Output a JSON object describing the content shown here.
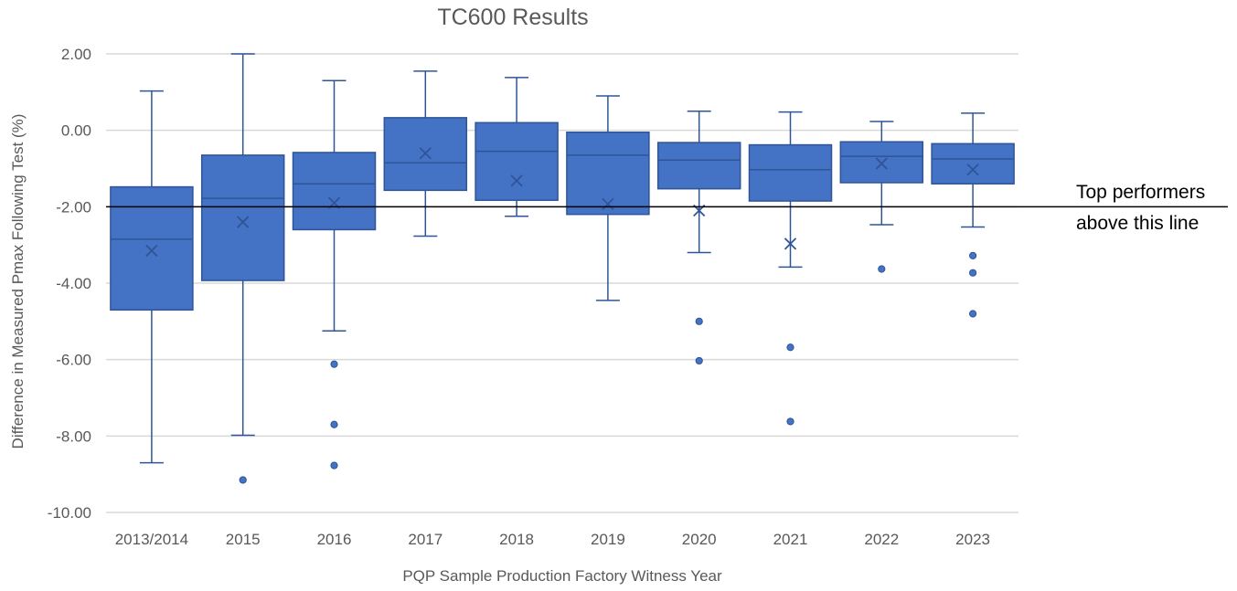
{
  "chart_data": {
    "type": "boxplot",
    "title": "TC600 Results",
    "xlabel": "PQP Sample Production Factory Witness Year",
    "ylabel": "Difference in Measured Pmax Following Test (%)",
    "ylim": [
      -10,
      2
    ],
    "yticks": [
      2,
      0,
      -2,
      -4,
      -6,
      -8,
      -10
    ],
    "ytick_labels": [
      "2.00",
      "0.00",
      "-2.00",
      "-4.00",
      "-6.00",
      "-8.00",
      "-10.00"
    ],
    "grid": true,
    "legend": "none",
    "colors": {
      "box_fill": "#4472C4",
      "box_stroke": "#2F5597",
      "grid": "#D9D9D9",
      "reference_line": "#000000"
    },
    "categories": [
      "2013/2014",
      "2015",
      "2016",
      "2017",
      "2018",
      "2019",
      "2020",
      "2021",
      "2022",
      "2023"
    ],
    "boxes": [
      {
        "whisker_low": -8.7,
        "q1": -4.7,
        "median": -2.85,
        "q3": -1.48,
        "whisker_high": 1.03,
        "mean": -3.15,
        "outliers": []
      },
      {
        "whisker_low": -7.98,
        "q1": -3.93,
        "median": -1.78,
        "q3": -0.65,
        "whisker_high": 2.0,
        "mean": -2.4,
        "outliers": [
          -9.15
        ]
      },
      {
        "whisker_low": -5.25,
        "q1": -2.6,
        "median": -1.4,
        "q3": -0.58,
        "whisker_high": 1.3,
        "mean": -1.9,
        "outliers": [
          -6.12,
          -7.7,
          -8.77
        ]
      },
      {
        "whisker_low": -2.77,
        "q1": -1.57,
        "median": -0.85,
        "q3": 0.33,
        "whisker_high": 1.55,
        "mean": -0.6,
        "outliers": []
      },
      {
        "whisker_low": -2.25,
        "q1": -1.83,
        "median": -0.55,
        "q3": 0.2,
        "whisker_high": 1.38,
        "mean": -1.32,
        "outliers": []
      },
      {
        "whisker_low": -4.45,
        "q1": -2.2,
        "median": -0.65,
        "q3": -0.05,
        "whisker_high": 0.9,
        "mean": -1.93,
        "outliers": []
      },
      {
        "whisker_low": -3.2,
        "q1": -1.53,
        "median": -0.78,
        "q3": -0.32,
        "whisker_high": 0.5,
        "mean": -2.1,
        "outliers": [
          -5.0,
          -6.03
        ]
      },
      {
        "whisker_low": -3.58,
        "q1": -1.85,
        "median": -1.03,
        "q3": -0.38,
        "whisker_high": 0.48,
        "mean": -2.97,
        "outliers": [
          -5.68,
          -7.62
        ]
      },
      {
        "whisker_low": -2.47,
        "q1": -1.37,
        "median": -0.68,
        "q3": -0.3,
        "whisker_high": 0.23,
        "mean": -0.87,
        "outliers": [
          -3.63
        ]
      },
      {
        "whisker_low": -2.53,
        "q1": -1.4,
        "median": -0.75,
        "q3": -0.35,
        "whisker_high": 0.45,
        "mean": -1.03,
        "outliers": [
          -3.28,
          -3.73,
          -4.8
        ]
      }
    ],
    "reference_line": {
      "y": -2.0
    },
    "annotation": {
      "line1": "Top performers",
      "line2": "above this line"
    }
  }
}
